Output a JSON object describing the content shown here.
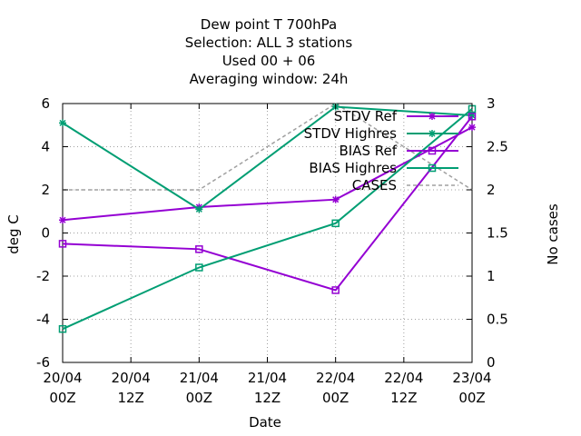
{
  "chart_data": {
    "type": "line",
    "title_lines": [
      "Dew point T 700hPa",
      "Selection: ALL      3 stations",
      "Used  00 + 06",
      "Averaging window: 24h"
    ],
    "xlabel": "Date",
    "ylabel": "deg C",
    "y2label": "No cases",
    "x_ticks": [
      [
        "20/04",
        "00Z"
      ],
      [
        "20/04",
        "12Z"
      ],
      [
        "21/04",
        "00Z"
      ],
      [
        "21/04",
        "12Z"
      ],
      [
        "22/04",
        "00Z"
      ],
      [
        "22/04",
        "12Z"
      ],
      [
        "23/04",
        "00Z"
      ]
    ],
    "ylim": [
      -6,
      6
    ],
    "y_ticks": [
      "-6",
      "-4",
      "-2",
      "0",
      "2",
      "4",
      "6"
    ],
    "y2lim": [
      0,
      3
    ],
    "y2_ticks": [
      "0",
      "0.5",
      "1",
      "1.5",
      "2",
      "2.5",
      "3"
    ],
    "grid": true,
    "legend_position": "top-right",
    "series": [
      {
        "name": "STDV Ref",
        "axis": "y",
        "color": "#9400d3",
        "marker": "star",
        "dashed": false,
        "x": [
          0,
          24,
          48,
          72
        ],
        "values": [
          0.6,
          1.2,
          1.55,
          4.9
        ]
      },
      {
        "name": "STDV Highres",
        "axis": "y",
        "color": "#009e73",
        "marker": "star",
        "dashed": false,
        "x": [
          0,
          24,
          48,
          72
        ],
        "values": [
          5.1,
          1.1,
          5.85,
          5.45
        ]
      },
      {
        "name": "BIAS Ref",
        "axis": "y",
        "color": "#9400d3",
        "marker": "square",
        "dashed": false,
        "x": [
          0,
          24,
          48,
          72
        ],
        "values": [
          -0.5,
          -0.75,
          -2.65,
          5.4
        ]
      },
      {
        "name": "BIAS Highres",
        "axis": "y",
        "color": "#009e73",
        "marker": "square",
        "dashed": false,
        "x": [
          0,
          24,
          48,
          72
        ],
        "values": [
          -4.45,
          -1.6,
          0.45,
          5.75
        ]
      },
      {
        "name": "CASES",
        "axis": "y2",
        "color": "#a0a0a0",
        "marker": "none",
        "dashed": true,
        "x": [
          0,
          24,
          48,
          72
        ],
        "values": [
          2,
          2,
          3,
          2
        ]
      }
    ]
  }
}
